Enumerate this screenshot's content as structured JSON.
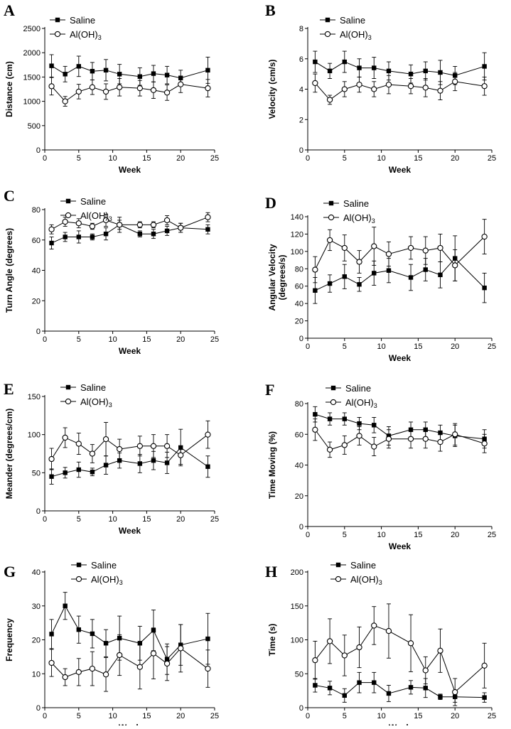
{
  "figure": {
    "x_axis_label": "Week"
  },
  "chart_data": [
    {
      "type": "line",
      "panel": "A",
      "ylabel": "Distance (cm)",
      "xlabel": "Week",
      "xlim": [
        0,
        25
      ],
      "ylim": [
        0,
        2500
      ],
      "xticks": [
        0,
        5,
        10,
        15,
        20,
        25
      ],
      "yticks": [
        0,
        500,
        1000,
        1500,
        2000,
        2500
      ],
      "x": [
        1,
        3,
        5,
        7,
        9,
        11,
        14,
        16,
        18,
        20,
        24
      ],
      "series": [
        {
          "name": "Saline",
          "marker": "filled-square",
          "values": [
            1730,
            1560,
            1720,
            1620,
            1640,
            1560,
            1510,
            1570,
            1540,
            1480,
            1640
          ],
          "errors": [
            230,
            160,
            210,
            180,
            220,
            200,
            180,
            170,
            180,
            160,
            270
          ]
        },
        {
          "name": "Al(OH)",
          "name_sub": "3",
          "marker": "open-circle",
          "values": [
            1310,
            1000,
            1200,
            1290,
            1200,
            1290,
            1270,
            1230,
            1180,
            1350,
            1270
          ],
          "errors": [
            180,
            100,
            150,
            150,
            160,
            180,
            160,
            170,
            160,
            170,
            180
          ]
        }
      ]
    },
    {
      "type": "line",
      "panel": "B",
      "ylabel": "Velocity (cm/s)",
      "xlabel": "Week",
      "xlim": [
        0,
        25
      ],
      "ylim": [
        0,
        8
      ],
      "xticks": [
        0,
        5,
        10,
        15,
        20,
        25
      ],
      "yticks": [
        0,
        2,
        4,
        6,
        8
      ],
      "x": [
        1,
        3,
        5,
        7,
        9,
        11,
        14,
        16,
        18,
        20,
        24
      ],
      "series": [
        {
          "name": "Saline",
          "marker": "filled-square",
          "values": [
            5.8,
            5.2,
            5.8,
            5.4,
            5.4,
            5.2,
            5.0,
            5.2,
            5.1,
            4.9,
            5.5
          ],
          "errors": [
            0.7,
            0.5,
            0.7,
            0.6,
            0.7,
            0.6,
            0.6,
            0.6,
            0.8,
            0.6,
            0.9
          ]
        },
        {
          "name": "Al(OH)",
          "name_sub": "3",
          "marker": "open-circle",
          "values": [
            4.4,
            3.3,
            4.0,
            4.3,
            4.0,
            4.3,
            4.2,
            4.1,
            3.9,
            4.5,
            4.2
          ],
          "errors": [
            0.6,
            0.3,
            0.5,
            0.5,
            0.5,
            0.6,
            0.5,
            0.6,
            0.6,
            0.6,
            0.6
          ]
        }
      ]
    },
    {
      "type": "line",
      "panel": "C",
      "ylabel": "Turn Angle (degrees)",
      "xlabel": "Week",
      "xlim": [
        0,
        25
      ],
      "ylim": [
        0,
        80
      ],
      "xticks": [
        0,
        5,
        10,
        15,
        20,
        25
      ],
      "yticks": [
        0,
        20,
        40,
        60,
        80
      ],
      "x": [
        1,
        3,
        5,
        7,
        9,
        11,
        14,
        16,
        18,
        20,
        24
      ],
      "series": [
        {
          "name": "Saline",
          "marker": "filled-square",
          "values": [
            58,
            62,
            62,
            62,
            64,
            70,
            64,
            64,
            66,
            68,
            67
          ],
          "errors": [
            4,
            3,
            4,
            2,
            4,
            5,
            2,
            3,
            3,
            3,
            3
          ]
        },
        {
          "name": "Al(OH)",
          "name_sub": "3",
          "marker": "open-circle",
          "values": [
            67,
            72,
            71,
            69,
            73,
            70,
            70,
            70,
            73,
            68,
            75
          ],
          "errors": [
            3,
            3,
            3,
            2,
            4,
            3,
            2,
            2,
            3,
            3,
            3
          ]
        }
      ]
    },
    {
      "type": "line",
      "panel": "D",
      "ylabel": "Angular Velocity (degrees/s)",
      "ylabel_lines": [
        "Angular Velocity",
        "(degrees/s)"
      ],
      "xlabel": "Week",
      "xlim": [
        0,
        25
      ],
      "ylim": [
        0,
        140
      ],
      "xticks": [
        0,
        5,
        10,
        15,
        20,
        25
      ],
      "yticks": [
        0,
        20,
        40,
        60,
        80,
        100,
        120,
        140
      ],
      "x": [
        1,
        3,
        5,
        7,
        9,
        11,
        14,
        16,
        18,
        20,
        24
      ],
      "series": [
        {
          "name": "Saline",
          "marker": "filled-square",
          "values": [
            55,
            63,
            71,
            62,
            75,
            78,
            70,
            79,
            73,
            92,
            58
          ],
          "errors": [
            15,
            10,
            14,
            8,
            14,
            14,
            15,
            13,
            15,
            26,
            17
          ]
        },
        {
          "name": "Al(OH)",
          "name_sub": "3",
          "marker": "open-circle",
          "values": [
            79,
            113,
            104,
            88,
            106,
            97,
            104,
            101,
            104,
            84,
            117
          ],
          "errors": [
            15,
            12,
            15,
            13,
            22,
            14,
            13,
            16,
            16,
            18,
            20
          ]
        }
      ]
    },
    {
      "type": "line",
      "panel": "E",
      "ylabel": "Meander (degrees/cm)",
      "xlabel": "Week",
      "xlim": [
        0,
        25
      ],
      "ylim": [
        0,
        150
      ],
      "xticks": [
        0,
        5,
        10,
        15,
        20,
        25
      ],
      "yticks": [
        0,
        50,
        100,
        150
      ],
      "x": [
        1,
        3,
        5,
        7,
        9,
        11,
        14,
        16,
        18,
        20,
        24
      ],
      "series": [
        {
          "name": "Saline",
          "marker": "filled-square",
          "values": [
            45,
            50,
            54,
            51,
            60,
            66,
            62,
            66,
            63,
            83,
            58
          ],
          "errors": [
            10,
            7,
            10,
            5,
            12,
            10,
            12,
            12,
            14,
            24,
            14
          ]
        },
        {
          "name": "Al(OH)",
          "name_sub": "3",
          "marker": "open-circle",
          "values": [
            68,
            96,
            88,
            75,
            94,
            81,
            85,
            85,
            85,
            73,
            100
          ],
          "errors": [
            14,
            13,
            14,
            12,
            22,
            13,
            13,
            15,
            15,
            12,
            18
          ]
        }
      ]
    },
    {
      "type": "line",
      "panel": "F",
      "ylabel": "Time Moving (%)",
      "xlabel": "Week",
      "xlim": [
        0,
        25
      ],
      "ylim": [
        0,
        80
      ],
      "xticks": [
        0,
        5,
        10,
        15,
        20,
        25
      ],
      "yticks": [
        0,
        20,
        40,
        60,
        80
      ],
      "x": [
        1,
        3,
        5,
        7,
        9,
        11,
        14,
        16,
        18,
        20,
        24
      ],
      "series": [
        {
          "name": "Saline",
          "marker": "filled-square",
          "values": [
            73,
            70,
            70,
            67,
            66,
            59,
            63,
            63,
            61,
            59,
            57
          ],
          "errors": [
            5,
            4,
            4,
            4,
            5,
            6,
            5,
            5,
            5,
            7,
            6
          ]
        },
        {
          "name": "Al(OH)",
          "name_sub": "3",
          "marker": "open-circle",
          "values": [
            63,
            50,
            53,
            59,
            52,
            57,
            57,
            57,
            55,
            60,
            54
          ],
          "errors": [
            7,
            5,
            6,
            6,
            6,
            6,
            6,
            6,
            6,
            7,
            6
          ]
        }
      ]
    },
    {
      "type": "line",
      "panel": "G",
      "ylabel": "Frequency",
      "xlabel": "Week",
      "xlim": [
        0,
        25
      ],
      "ylim": [
        0,
        40
      ],
      "xticks": [
        0,
        5,
        10,
        15,
        20,
        25
      ],
      "yticks": [
        0,
        10,
        20,
        30,
        40
      ],
      "x": [
        1,
        3,
        5,
        7,
        9,
        11,
        14,
        16,
        18,
        20,
        24
      ],
      "series": [
        {
          "name": "Saline",
          "marker": "filled-square",
          "values": [
            21.7,
            30,
            23,
            21.8,
            19,
            20.5,
            19,
            22.8,
            14.3,
            18.5,
            20.3
          ],
          "errors": [
            4.3,
            4,
            4,
            4.2,
            4,
            6.5,
            5,
            6,
            4.5,
            6,
            7.5
          ]
        },
        {
          "name": "Al(OH)",
          "name_sub": "3",
          "marker": "open-circle",
          "values": [
            13.2,
            9,
            10.5,
            11.5,
            9.8,
            15.5,
            12,
            16,
            13,
            17.5,
            11.5
          ],
          "errors": [
            4,
            2.5,
            4,
            5,
            5,
            6,
            6.5,
            7.5,
            5,
            7,
            5.5
          ]
        }
      ]
    },
    {
      "type": "line",
      "panel": "H",
      "ylabel": "Time (s)",
      "xlabel": "Week",
      "xlim": [
        0,
        25
      ],
      "ylim": [
        0,
        200
      ],
      "xticks": [
        0,
        5,
        10,
        15,
        20,
        25
      ],
      "yticks": [
        0,
        50,
        100,
        150,
        200
      ],
      "x": [
        1,
        3,
        5,
        7,
        9,
        11,
        14,
        16,
        18,
        20,
        24
      ],
      "series": [
        {
          "name": "Saline",
          "marker": "filled-square",
          "values": [
            33,
            29,
            18,
            37,
            37,
            21,
            30,
            29,
            16,
            16,
            15
          ],
          "errors": [
            10,
            10,
            10,
            15,
            15,
            12,
            10,
            14,
            4,
            8,
            7
          ]
        },
        {
          "name": "Al(OH)",
          "name_sub": "3",
          "marker": "open-circle",
          "values": [
            70,
            98,
            77,
            89,
            121,
            113,
            95,
            55,
            84,
            23,
            62
          ],
          "errors": [
            28,
            33,
            30,
            30,
            28,
            40,
            42,
            20,
            32,
            20,
            33
          ]
        }
      ]
    }
  ]
}
